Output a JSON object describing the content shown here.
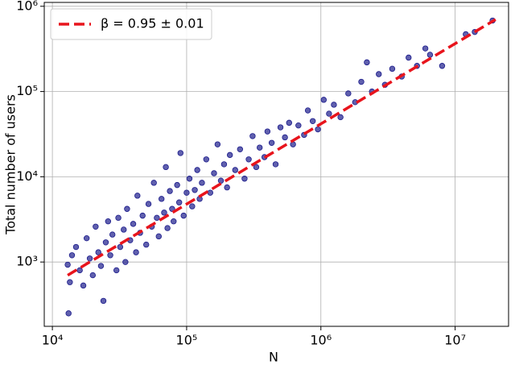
{
  "chart_data": {
    "type": "scatter",
    "x_label": "N",
    "y_label": "Total number of users",
    "xlog": true,
    "ylog": true,
    "grid": true,
    "legend": "upper left",
    "xlim": [
      8700,
      25000000
    ],
    "ylim": [
      176,
      1110000
    ],
    "xticks": [
      {
        "value": 10000,
        "label": "10⁴"
      },
      {
        "value": 100000,
        "label": "10⁵"
      },
      {
        "value": 1000000,
        "label": "10⁶"
      },
      {
        "value": 10000000,
        "label": "10⁷"
      }
    ],
    "yticks": [
      {
        "value": 1000,
        "label": "10³"
      },
      {
        "value": 10000,
        "label": "10⁴"
      },
      {
        "value": 100000,
        "label": "10⁵"
      },
      {
        "value": 1000000,
        "label": "10⁶"
      }
    ],
    "points": {
      "color": "#1c1c8c",
      "x": [
        13000,
        13500,
        14000,
        13200,
        15000,
        16000,
        17000,
        18000,
        19000,
        20000,
        21000,
        22000,
        23000,
        24000,
        25000,
        26000,
        27000,
        28000,
        30000,
        31000,
        32000,
        34000,
        35000,
        36000,
        38000,
        40000,
        42000,
        43000,
        45000,
        47000,
        50000,
        52000,
        55000,
        57000,
        60000,
        62000,
        65000,
        68000,
        70000,
        72000,
        75000,
        78000,
        80000,
        85000,
        88000,
        90000,
        95000,
        100000,
        105000,
        110000,
        115000,
        120000,
        125000,
        130000,
        140000,
        150000,
        160000,
        170000,
        180000,
        190000,
        200000,
        210000,
        230000,
        250000,
        270000,
        290000,
        310000,
        330000,
        350000,
        380000,
        400000,
        430000,
        460000,
        500000,
        540000,
        580000,
        620000,
        680000,
        750000,
        800000,
        870000,
        950000,
        1050000,
        1150000,
        1250000,
        1400000,
        1600000,
        1800000,
        2000000,
        2200000,
        2400000,
        2700000,
        3000000,
        3400000,
        4000000,
        4500000,
        5200000,
        6000000,
        6500000,
        8000000,
        12000000,
        14000000,
        19000000
      ],
      "values": [
        930,
        580,
        1200,
        250,
        1500,
        800,
        530,
        1900,
        1100,
        700,
        2600,
        1300,
        900,
        350,
        1700,
        3000,
        1200,
        2100,
        800,
        3300,
        1500,
        2400,
        1000,
        4200,
        1800,
        2800,
        1300,
        6000,
        2200,
        3500,
        1600,
        4800,
        2600,
        8500,
        3300,
        2000,
        5500,
        3800,
        13000,
        2500,
        6800,
        4200,
        3000,
        8000,
        5000,
        19000,
        3500,
        6500,
        9500,
        4500,
        7000,
        12000,
        5500,
        8500,
        16000,
        6500,
        11000,
        24000,
        9000,
        14000,
        7500,
        18000,
        12000,
        21000,
        9500,
        16000,
        30000,
        13000,
        22000,
        17000,
        34000,
        25000,
        14000,
        38000,
        29000,
        43000,
        24000,
        40000,
        31000,
        60000,
        45000,
        36000,
        80000,
        55000,
        70000,
        50000,
        95000,
        75000,
        130000,
        220000,
        100000,
        160000,
        120000,
        185000,
        150000,
        250000,
        200000,
        320000,
        270000,
        200000,
        470000,
        500000,
        680000
      ]
    },
    "series": [
      {
        "name": "β = 0.95 ± 0.01",
        "color": "#e8141c",
        "style": "dashed",
        "x": [
          13000,
          20000000
        ],
        "values": [
          700,
          700000
        ]
      }
    ]
  }
}
